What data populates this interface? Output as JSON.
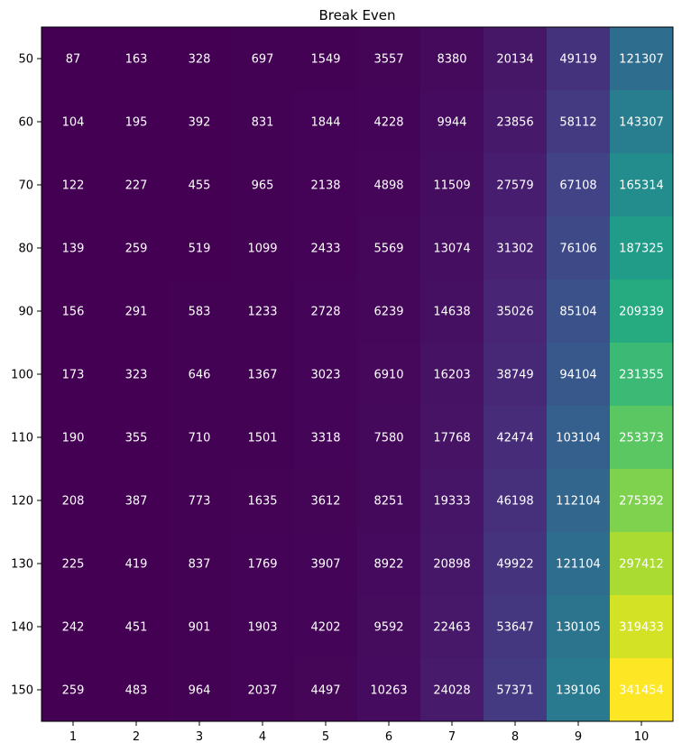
{
  "chart_data": {
    "type": "heatmap",
    "title": "Break Even",
    "xlabel": "",
    "ylabel": "",
    "x_categories": [
      "1",
      "2",
      "3",
      "4",
      "5",
      "6",
      "7",
      "8",
      "9",
      "10"
    ],
    "y_categories": [
      "50",
      "60",
      "70",
      "80",
      "90",
      "100",
      "110",
      "120",
      "130",
      "140",
      "150"
    ],
    "values": [
      [
        87,
        163,
        328,
        697,
        1549,
        3557,
        8380,
        20134,
        49119,
        121307
      ],
      [
        104,
        195,
        392,
        831,
        1844,
        4228,
        9944,
        23856,
        58112,
        143307
      ],
      [
        122,
        227,
        455,
        965,
        2138,
        4898,
        11509,
        27579,
        67108,
        165314
      ],
      [
        139,
        259,
        519,
        1099,
        2433,
        5569,
        13074,
        31302,
        76106,
        187325
      ],
      [
        156,
        291,
        583,
        1233,
        2728,
        6239,
        14638,
        35026,
        85104,
        209339
      ],
      [
        173,
        323,
        646,
        1367,
        3023,
        6910,
        16203,
        38749,
        94104,
        231355
      ],
      [
        190,
        355,
        710,
        1501,
        3318,
        7580,
        17768,
        42474,
        103104,
        253373
      ],
      [
        208,
        387,
        773,
        1635,
        3612,
        8251,
        19333,
        46198,
        112104,
        275392
      ],
      [
        225,
        419,
        837,
        1769,
        3907,
        8922,
        20898,
        49922,
        121104,
        297412
      ],
      [
        242,
        451,
        901,
        1903,
        4202,
        9592,
        22463,
        53647,
        130105,
        319433
      ],
      [
        259,
        483,
        964,
        2037,
        4497,
        10263,
        24028,
        57371,
        139106,
        341454
      ]
    ],
    "colormap": "viridis",
    "cell_text_color": "#ffffff",
    "grid": false,
    "legend": "none"
  }
}
